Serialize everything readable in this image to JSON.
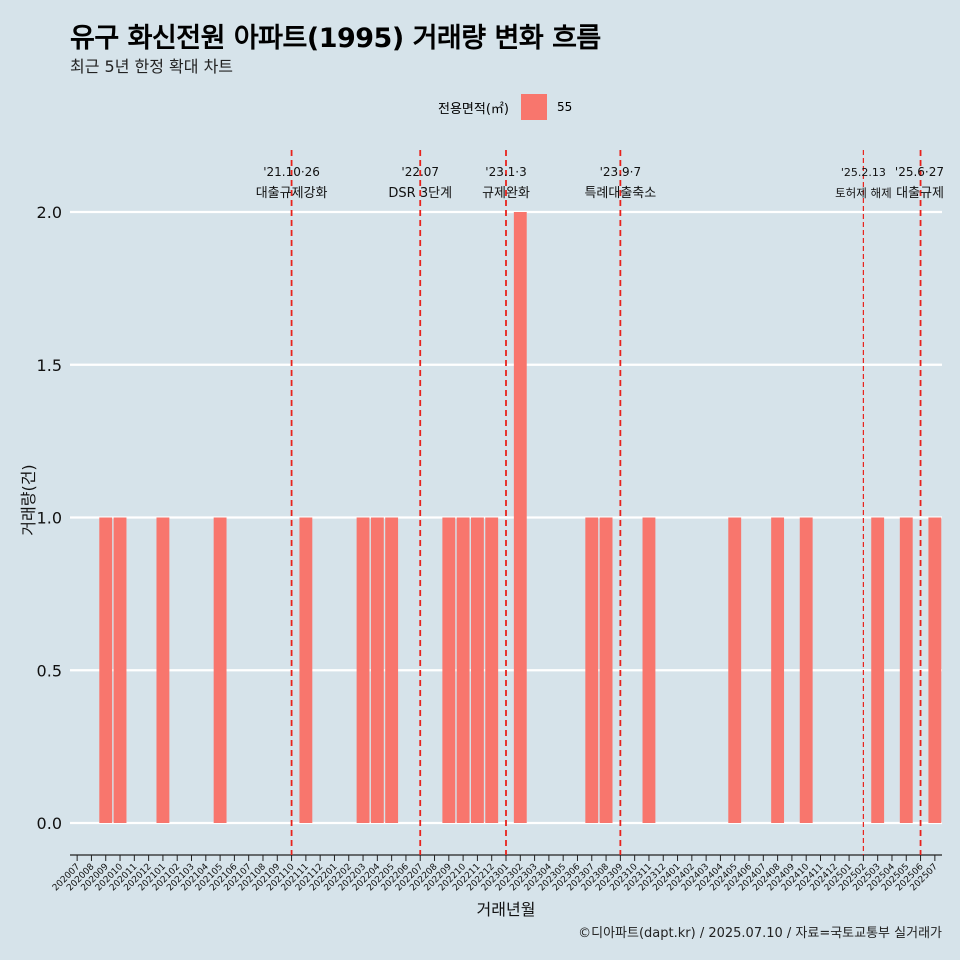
{
  "header": {
    "title": "유구 화신전원 아파트(1995) 거래량 변화 흐름",
    "subtitle": "최근 5년 한정 확대 차트"
  },
  "legend": {
    "title": "전용면적(㎡)",
    "label": "55",
    "color": "#f8766d"
  },
  "caption": "©디아파트(dapt.kr) / 2025.07.10 / 자료=국토교통부 실거래가",
  "chart_data": {
    "type": "bar",
    "xlabel": "거래년월",
    "ylabel": "거래량(건)",
    "ylim": [
      0,
      2
    ],
    "yticks": [
      "0.0",
      "0.5",
      "1.0",
      "1.5",
      "2.0"
    ],
    "grid": "horizontal",
    "legend_position": "top",
    "bar_color": "#f8766d",
    "categories": [
      "202007",
      "202008",
      "202009",
      "202010",
      "202011",
      "202012",
      "202101",
      "202102",
      "202103",
      "202104",
      "202105",
      "202106",
      "202107",
      "202108",
      "202109",
      "202110",
      "202111",
      "202112",
      "202201",
      "202202",
      "202203",
      "202204",
      "202205",
      "202206",
      "202207",
      "202208",
      "202209",
      "202210",
      "202211",
      "202212",
      "202301",
      "202302",
      "202303",
      "202304",
      "202305",
      "202306",
      "202307",
      "202308",
      "202309",
      "202310",
      "202311",
      "202312",
      "202401",
      "202402",
      "202403",
      "202404",
      "202405",
      "202406",
      "202407",
      "202408",
      "202409",
      "202410",
      "202411",
      "202412",
      "202501",
      "202502",
      "202503",
      "202504",
      "202505",
      "202506",
      "202507"
    ],
    "series": [
      {
        "name": "55",
        "values": [
          0,
          0,
          1,
          1,
          0,
          0,
          1,
          0,
          0,
          0,
          1,
          0,
          0,
          0,
          0,
          0,
          1,
          0,
          0,
          0,
          1,
          1,
          1,
          0,
          0,
          0,
          1,
          1,
          1,
          1,
          0,
          2,
          0,
          0,
          0,
          0,
          1,
          1,
          0,
          0,
          1,
          0,
          0,
          0,
          0,
          0,
          1,
          0,
          0,
          1,
          0,
          1,
          0,
          0,
          0,
          0,
          1,
          0,
          1,
          0,
          1
        ]
      }
    ],
    "annotations": [
      {
        "month": "202110",
        "line1": "'21.10·26",
        "line2": "대출규제강화",
        "dash": "bold"
      },
      {
        "month": "202207",
        "line1": "'22.07",
        "line2": "DSR 3단계",
        "dash": "bold"
      },
      {
        "month": "202301",
        "line1": "'23.1·3",
        "line2": "규제완화",
        "dash": "bold"
      },
      {
        "month": "202309",
        "line1": "'23.9·7",
        "line2": "특례대출축소",
        "dash": "bold"
      },
      {
        "month": "202502",
        "line1": "'25.2.13",
        "line2": "토허제 해제",
        "dash": "thin"
      },
      {
        "month": "202506",
        "line1": "'25.6·27",
        "line2": "대출규제",
        "dash": "bold"
      }
    ]
  }
}
